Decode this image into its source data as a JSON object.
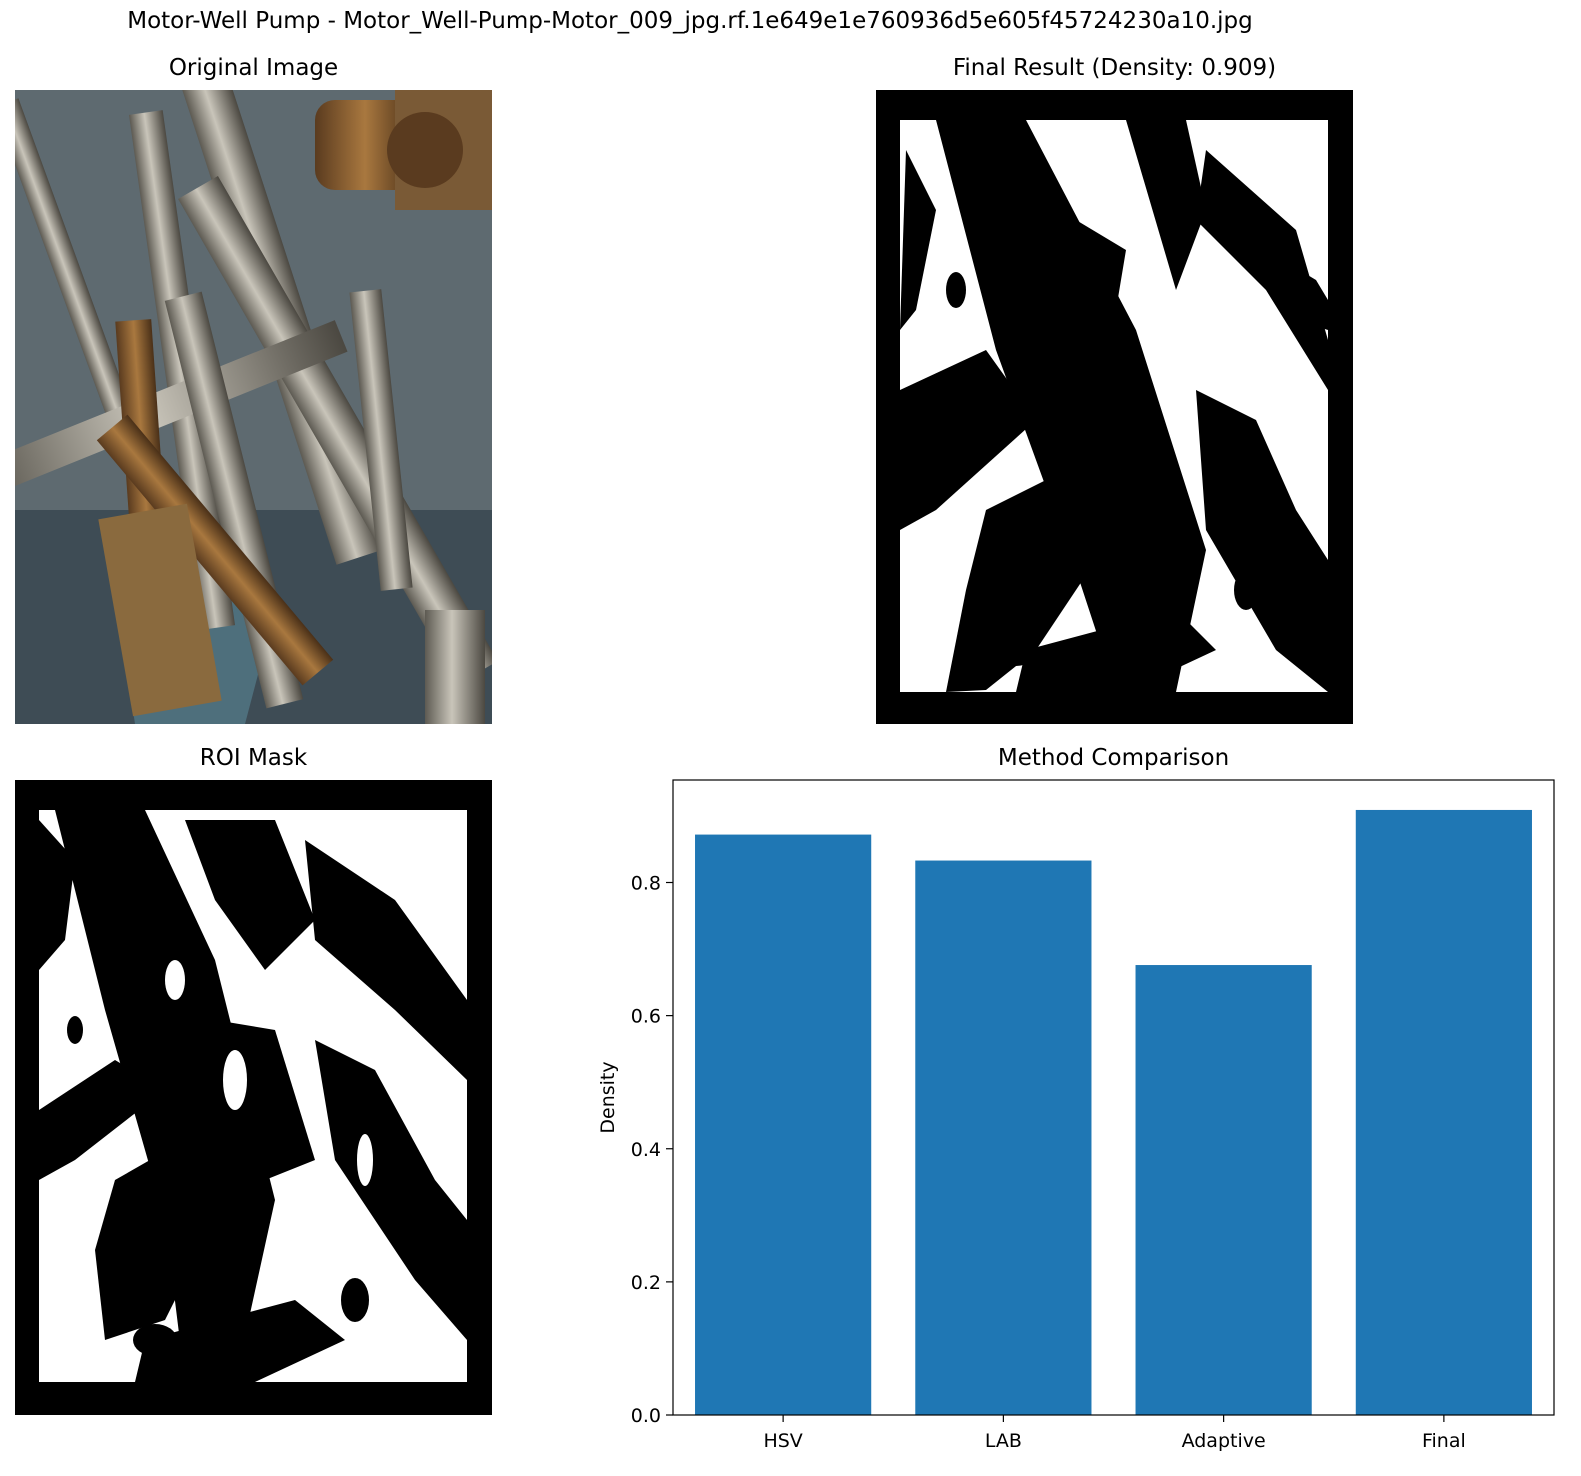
{
  "suptitle": "Motor-Well Pump - Motor_Well-Pump-Motor_009_jpg.rf.1e649e1e760936d5e605f45724230a10.jpg",
  "panels": {
    "original": {
      "title": "Original Image"
    },
    "final": {
      "title": "Final Result (Density: 0.909)"
    },
    "roi": {
      "title": "ROI Mask"
    },
    "chart": {
      "title": "Method Comparison"
    }
  },
  "colors": {
    "bar": "#1f77b4",
    "mask_bg": "#000000",
    "mask_fg": "#ffffff"
  },
  "chart_data": {
    "type": "bar",
    "title": "Method Comparison",
    "xlabel": "",
    "ylabel": "Density",
    "categories": [
      "HSV",
      "LAB",
      "Adaptive",
      "Final"
    ],
    "values": [
      0.872,
      0.833,
      0.676,
      0.909
    ],
    "ylim": [
      0,
      0.954
    ],
    "yticks": [
      0.0,
      0.2,
      0.4,
      0.6,
      0.8
    ],
    "ytick_labels": [
      "0.0",
      "0.2",
      "0.4",
      "0.6",
      "0.8"
    ],
    "grid": false
  }
}
